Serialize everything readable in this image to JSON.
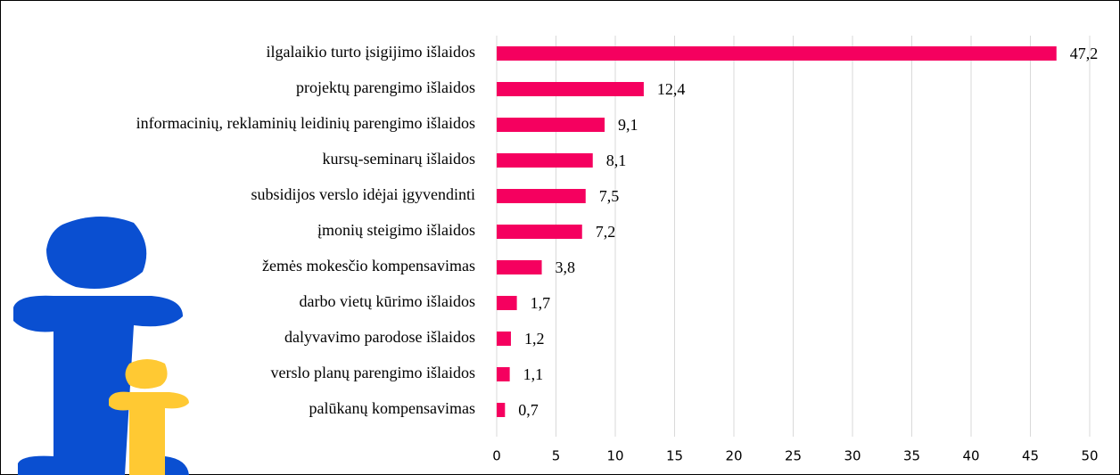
{
  "chart_data": {
    "type": "bar",
    "orientation": "horizontal",
    "categories": [
      "ilgalaikio turto įsigijimo išlaidos",
      "projektų parengimo išlaidos",
      "informacinių, reklaminių leidinių parengimo išlaidos",
      "kursų-seminarų išlaidos",
      "subsidijos verslo idėjai įgyvendinti",
      "įmonių steigimo išlaidos",
      "žemės mokesčio kompensavimas",
      "darbo vietų kūrimo išlaidos",
      "dalyvavimo parodose išlaidos",
      "verslo planų parengimo išlaidos",
      "palūkanų kompensavimas"
    ],
    "values": [
      47.2,
      12.4,
      9.1,
      8.1,
      7.5,
      7.2,
      3.8,
      1.7,
      1.2,
      1.1,
      0.7
    ],
    "value_labels": [
      "47,2",
      "12,4",
      "9,1",
      "8,1",
      "7,5",
      "7,2",
      "3,8",
      "1,7",
      "1,2",
      "1,1",
      "0,7"
    ],
    "color": "#f5005f",
    "xlim": [
      0,
      50
    ],
    "xticks": [
      0,
      5,
      10,
      15,
      20,
      25,
      30,
      35,
      40,
      45,
      50
    ],
    "grid": true
  }
}
